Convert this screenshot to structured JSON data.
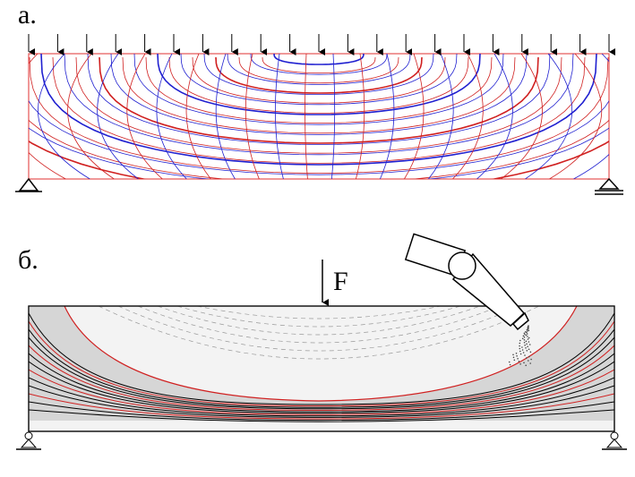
{
  "panels": [
    {
      "label": "а."
    },
    {
      "label": "б.",
      "load_label": "F"
    }
  ]
}
